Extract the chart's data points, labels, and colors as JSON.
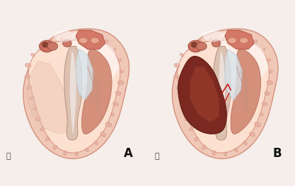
{
  "fig_width": 4.17,
  "fig_height": 2.63,
  "dpi": 100,
  "bg_color": "#f5eeea",
  "label_A": "A",
  "label_B": "B",
  "label_fontsize": 12,
  "label_fontweight": "bold",
  "label_color": "#111111",
  "kanji_fontsize": 8,
  "heart_outer_color": "#f0c0b0",
  "heart_outer_edge": "#d4907a",
  "heart_wall_color": "#f2cfc0",
  "cavity_color": "#fce8e0",
  "septum_light": "#e8d0c0",
  "septum_dark": "#c09080",
  "muscle_A_color": "#d4a090",
  "muscle_B_color": "#7a2820",
  "valve_white": "#e8e8f0",
  "valve_beige": "#d8c0b0",
  "aorta_color": "#e09080",
  "papillary_top_color": "#c87060",
  "trabecular_color": "#e8b0a0",
  "red_thread": "#cc2020",
  "wall_shadow": "#d4a090"
}
